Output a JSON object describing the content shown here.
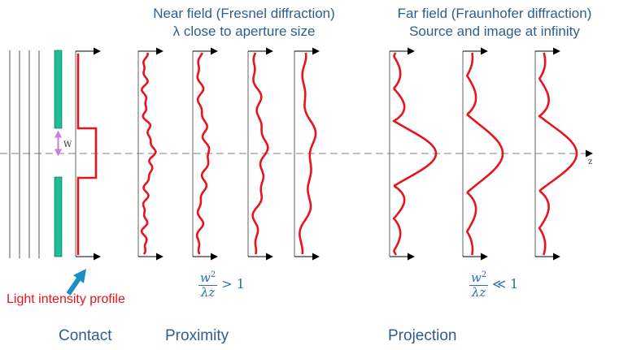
{
  "headers": {
    "near_line1": "Near field (Fresnel diffraction)",
    "near_line2": "λ close to aperture size",
    "far_line1": "Far field (Fraunhofer diffraction)",
    "far_line2": "Source and image at infinity"
  },
  "labels": {
    "w": "W",
    "z": "z",
    "intensity_profile": "Light intensity profile"
  },
  "conditions": {
    "proximity": {
      "num": "w",
      "exp": "2",
      "den": "λz",
      "relation": "> 1"
    },
    "projection": {
      "num": "w",
      "exp": "2",
      "den": "λz",
      "relation": "≪ 1"
    }
  },
  "categories": {
    "contact": "Contact",
    "proximity": "Proximity",
    "projection": "Projection"
  },
  "colors": {
    "text_blue": "#2e5e8c",
    "profile_red": "#e8141c",
    "mask_green": "#1fbf95",
    "arrow_cyan": "#1a8fc4",
    "w_arrow_violet": "#c77dde"
  }
}
